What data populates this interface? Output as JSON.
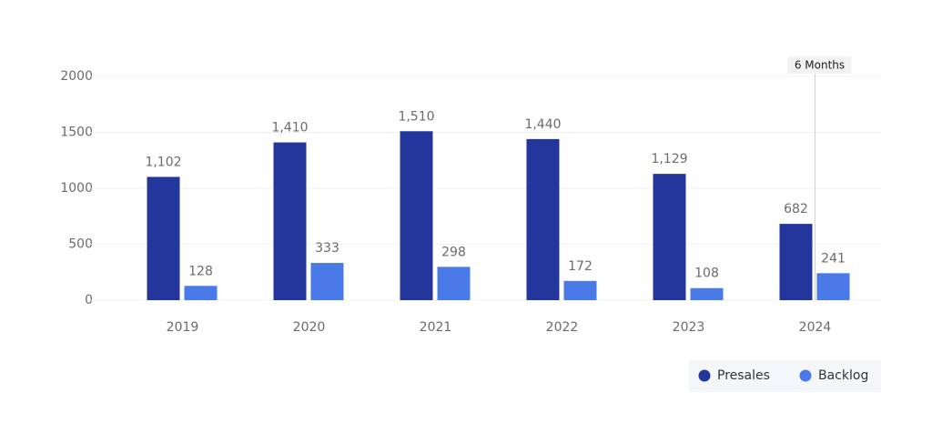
{
  "chart_data": {
    "type": "bar",
    "categories": [
      "2019",
      "2020",
      "2021",
      "2022",
      "2023",
      "2024"
    ],
    "series": [
      {
        "name": "Presales",
        "color": "#22369c",
        "values": [
          1102,
          1410,
          1510,
          1440,
          1129,
          682
        ],
        "value_labels": [
          "1,102",
          "1,410",
          "1,510",
          "1,440",
          "1,129",
          "682"
        ]
      },
      {
        "name": "Backlog",
        "color": "#4a7ae8",
        "values": [
          128,
          333,
          298,
          172,
          108,
          241
        ]
      }
    ],
    "ylim": [
      0,
      2000
    ],
    "yticks": [
      0,
      500,
      1000,
      1500,
      2000
    ],
    "grid": true,
    "annotation": "6 Months",
    "legend": "bottom-right"
  }
}
